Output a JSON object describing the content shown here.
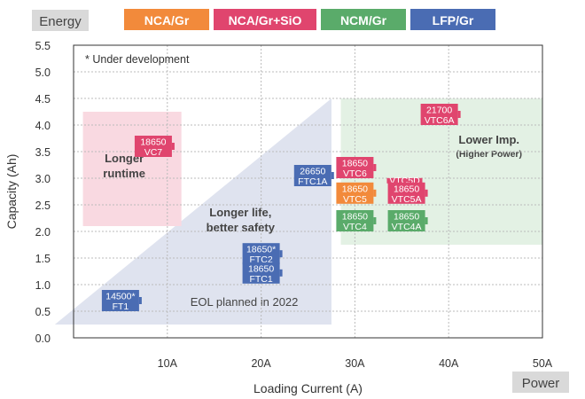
{
  "header": {
    "energy_label": "Energy",
    "power_label": "Power"
  },
  "legend": [
    {
      "name": "NCA/Gr",
      "color": "#f28a3b"
    },
    {
      "name": "NCA/Gr+SiO",
      "color": "#e0456e"
    },
    {
      "name": "NCM/Gr",
      "color": "#5aab6a"
    },
    {
      "name": "LFP/Gr",
      "color": "#4a6cb3"
    }
  ],
  "chart_data": {
    "type": "scatter",
    "xlabel": "Loading Current (A)",
    "ylabel": "Capacity (Ah)",
    "xlim": [
      0,
      50
    ],
    "ylim": [
      0,
      5.5
    ],
    "x_ticks": [
      {
        "value": 10,
        "label": "10A"
      },
      {
        "value": 20,
        "label": "20A"
      },
      {
        "value": 30,
        "label": "30A"
      },
      {
        "value": 40,
        "label": "40A"
      },
      {
        "value": 50,
        "label": "50A"
      }
    ],
    "y_ticks": [
      {
        "value": 0,
        "label": "0.0"
      },
      {
        "value": 0.5,
        "label": "0.5"
      },
      {
        "value": 1,
        "label": "1.0"
      },
      {
        "value": 1.5,
        "label": "1.5"
      },
      {
        "value": 2,
        "label": "2.0"
      },
      {
        "value": 2.5,
        "label": "2.5"
      },
      {
        "value": 3,
        "label": "3.0"
      },
      {
        "value": 3.5,
        "label": "3.5"
      },
      {
        "value": 4,
        "label": "4.0"
      },
      {
        "value": 4.5,
        "label": "4.5"
      },
      {
        "value": 5,
        "label": "5.0"
      },
      {
        "value": 5.5,
        "label": "5.5"
      }
    ],
    "grid": true,
    "note": "* Under development",
    "regions": [
      {
        "name": "longer-runtime",
        "label": [
          "Longer",
          "runtime"
        ],
        "x": [
          1,
          11.5
        ],
        "y": [
          2.1,
          4.25
        ],
        "color": "#f9d9e1"
      },
      {
        "name": "lower-impedance",
        "label": [
          "Lower Imp.",
          "(Higher Power)"
        ],
        "x": [
          28.5,
          50
        ],
        "y": [
          1.75,
          4.5
        ],
        "color": "#e3f1e4"
      }
    ],
    "triangle": {
      "label": [
        "Longer life,",
        "better safety"
      ],
      "eol_label": "EOL planned in 2022",
      "points": [
        [
          -2,
          0.25
        ],
        [
          27.5,
          0.25
        ],
        [
          27.5,
          4.5
        ]
      ],
      "color": "#dfe3ef"
    },
    "cells": [
      {
        "line1": "14500*",
        "line2": "FT1",
        "x": 5,
        "y": 0.7,
        "chem": "LFP/Gr"
      },
      {
        "line1": "18650",
        "line2": "VC7",
        "x": 8.5,
        "y": 3.6,
        "chem": "NCA/Gr+SiO"
      },
      {
        "line1": "18650*",
        "line2": "FTC2",
        "x": 20,
        "y": 1.58,
        "chem": "LFP/Gr"
      },
      {
        "line1": "18650",
        "line2": "FTC1",
        "x": 20,
        "y": 1.22,
        "chem": "LFP/Gr"
      },
      {
        "line1": "26650",
        "line2": "FTC1A",
        "x": 25.5,
        "y": 3.05,
        "chem": "LFP/Gr"
      },
      {
        "line1": "18650",
        "line2": "VTC6",
        "x": 30,
        "y": 3.2,
        "chem": "NCA/Gr+SiO"
      },
      {
        "line1": "18650",
        "line2": "VTC5",
        "x": 30,
        "y": 2.72,
        "chem": "NCA/Gr"
      },
      {
        "line1": "VTC5D",
        "line2": "",
        "x": 35.3,
        "y": 2.92,
        "chem": "NCA/Gr+SiO"
      },
      {
        "line1": "18650",
        "line2": "VTC5A",
        "x": 35.5,
        "y": 2.72,
        "chem": "NCA/Gr+SiO"
      },
      {
        "line1": "18650",
        "line2": "VTC4",
        "x": 30,
        "y": 2.2,
        "chem": "NCM/Gr"
      },
      {
        "line1": "18650",
        "line2": "VTC4A",
        "x": 35.5,
        "y": 2.2,
        "chem": "NCM/Gr"
      },
      {
        "line1": "21700",
        "line2": "VTC6A",
        "x": 39,
        "y": 4.2,
        "chem": "NCA/Gr+SiO"
      }
    ]
  }
}
